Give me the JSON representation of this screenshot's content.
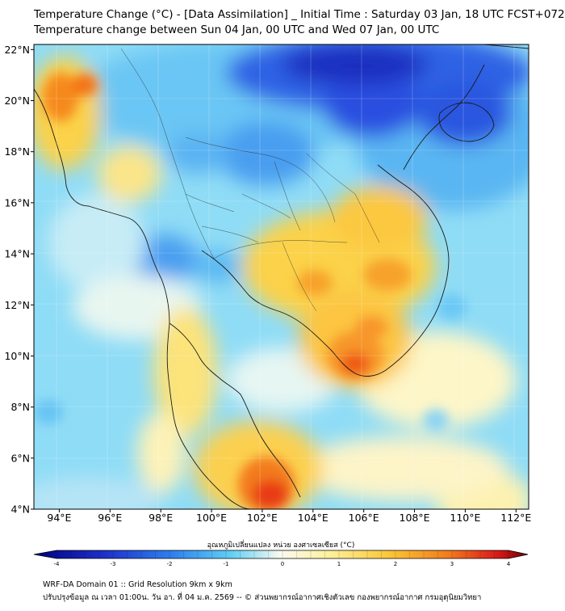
{
  "title_line1": "Temperature Change (°C) - [Data Assimilation] _ Initial Time : Saturday 03 Jan, 18 UTC FCST+072",
  "title_line2": "Temperature change between Sun 04 Jan, 00 UTC and Wed 07 Jan, 00 UTC",
  "map": {
    "lon_range": [
      93,
      112.5
    ],
    "lat_range": [
      4,
      22.2
    ],
    "lat_ticks": [
      "22°N",
      "20°N",
      "18°N",
      "16°N",
      "14°N",
      "12°N",
      "10°N",
      "8°N",
      "6°N",
      "4°N"
    ],
    "lon_ticks": [
      "94°E",
      "96°E",
      "98°E",
      "100°E",
      "102°E",
      "104°E",
      "106°E",
      "108°E",
      "110°E",
      "112°E"
    ]
  },
  "colorbar": {
    "title": "อุณหภูมิเปลี่ยนแปลง หน่วย องศาเซลเซียส (°C)",
    "tick_labels": [
      "-4",
      "-3",
      "-2",
      "-1",
      "0",
      "1",
      "2",
      "3",
      "4"
    ],
    "range": [
      -4,
      4
    ]
  },
  "footer_line1": "WRF-DA Domain 01 :: Grid Resolution 9km x 9km",
  "footer_line2": "ปรับปรุงข้อมูล ณ เวลา 01:00น. วัน อา. ที่ 04 ม.ค. 2569 -- © ส่วนพยากรณ์อากาศเชิงตัวเลข กองพยากรณ์อากาศ กรมอุตุนิยมวิทยา",
  "colors": {
    "cold_extreme": "#1a1aa0",
    "cold": "#3b78f0",
    "cool": "#5fd0f5",
    "neutral": "#fdfde8",
    "warm": "#fbd24a",
    "hot": "#f6841f",
    "hot_extreme": "#e01010"
  }
}
